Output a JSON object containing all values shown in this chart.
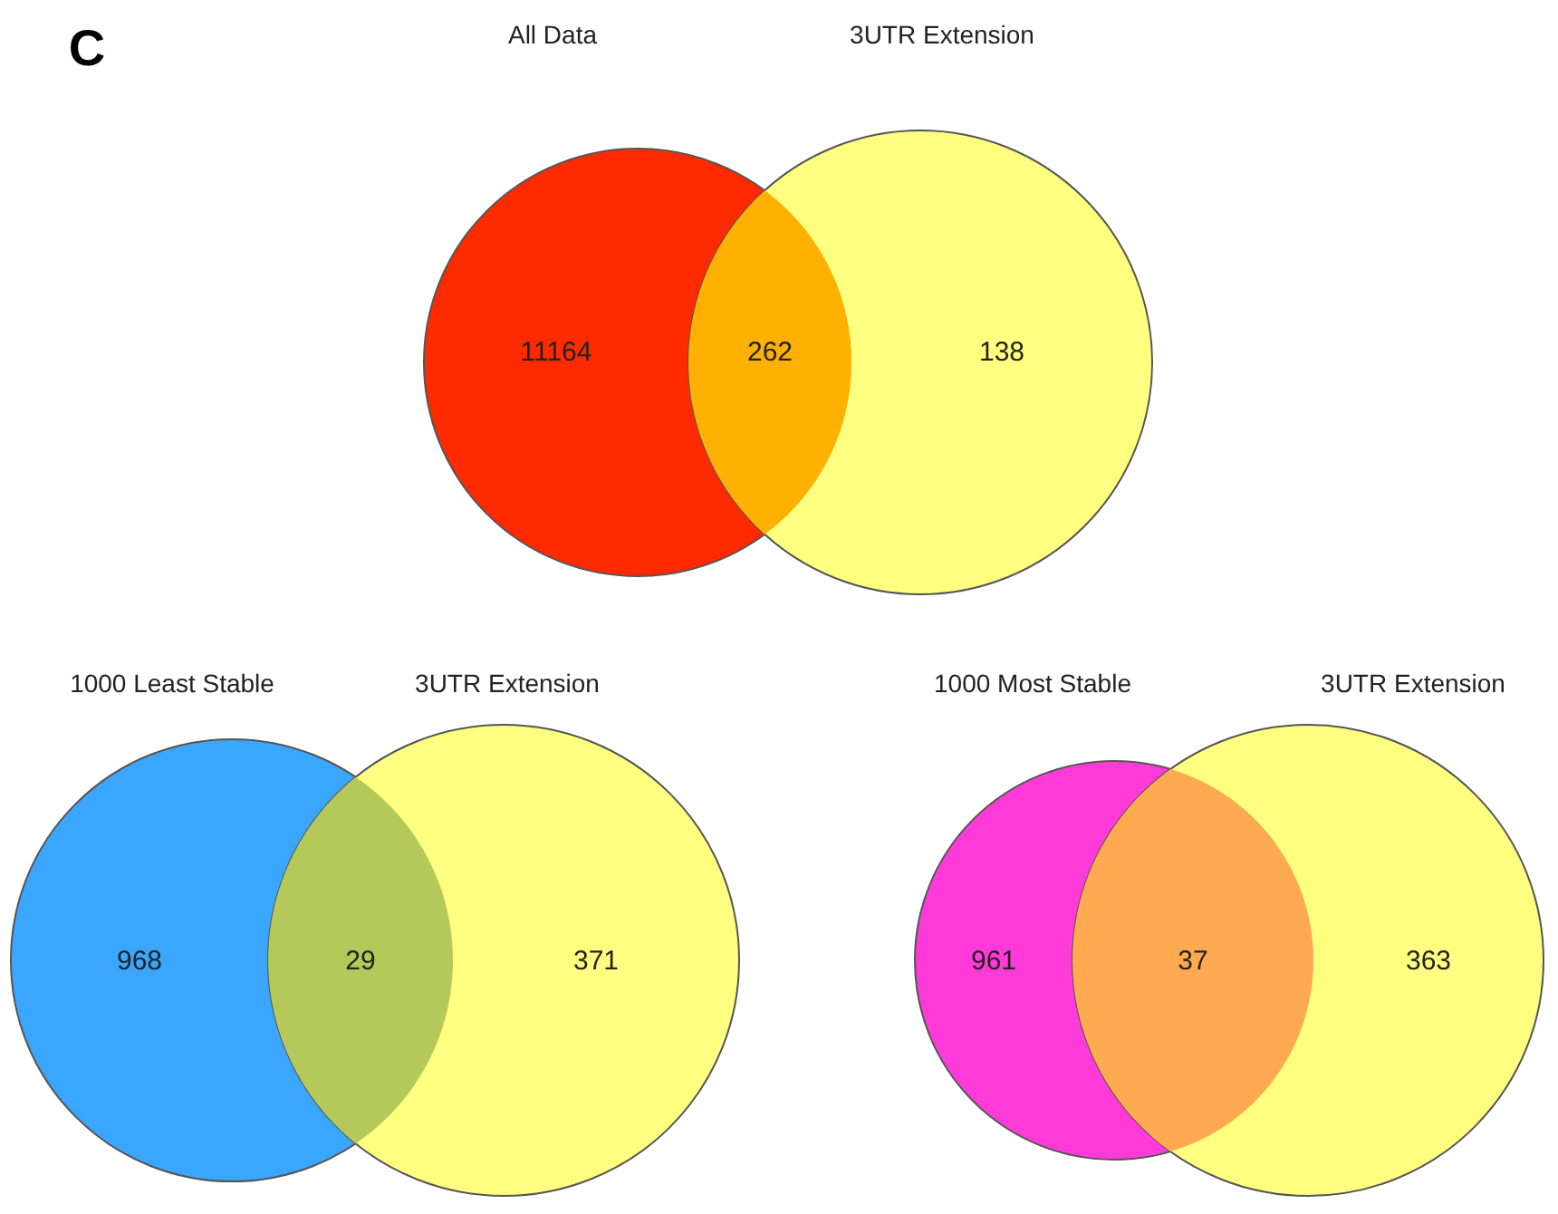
{
  "chart_data": [
    {
      "type": "other",
      "title": "C",
      "annotations": [
        "All Data",
        "3UTR Extension"
      ],
      "categories": [
        null,
        null,
        null
      ],
      "values": [
        11164,
        262,
        138
      ],
      "colors": [
        "#ff2a00",
        "#ffb000",
        "#ffff80"
      ],
      "data_labels": true
    },
    {
      "type": "other",
      "annotations": [
        "1000 Least Stable",
        "3UTR Extension"
      ],
      "categories": [
        null,
        null,
        null
      ],
      "values": [
        968,
        29,
        371
      ],
      "colors": [
        "#3aa6ff",
        "#b5c85a",
        "#ffff80"
      ],
      "data_labels": true
    },
    {
      "type": "other",
      "annotations": [
        "1000 Most Stable",
        "3UTR Extension"
      ],
      "categories": [
        null,
        null,
        null
      ],
      "values": [
        961,
        37,
        363
      ],
      "colors": [
        "#ff3ad8",
        "#ffaa50",
        "#ffff80"
      ],
      "data_labels": true
    }
  ]
}
